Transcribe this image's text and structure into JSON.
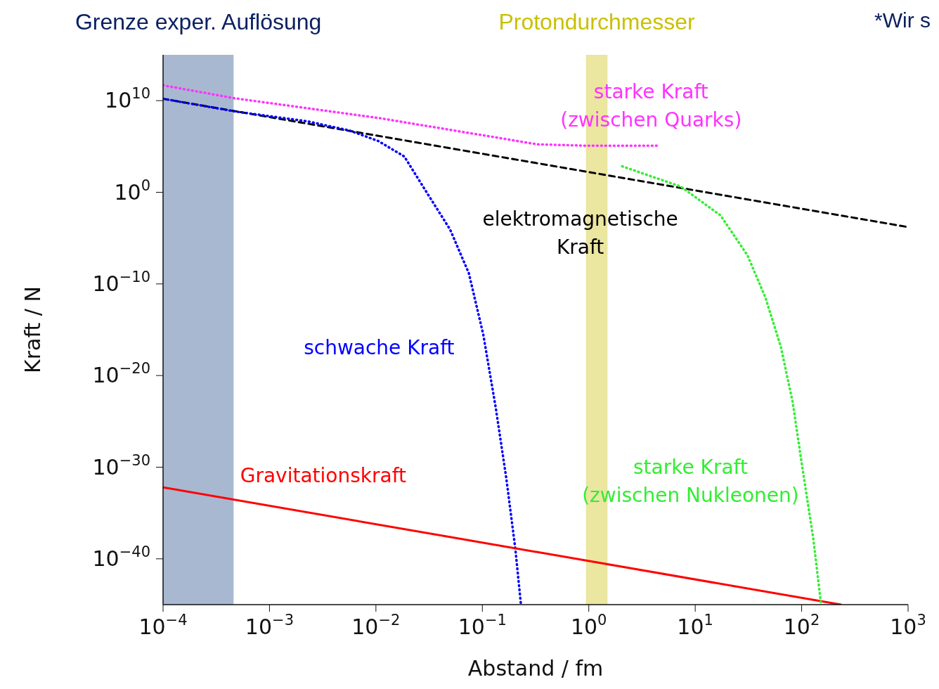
{
  "chart_data": {
    "type": "line",
    "xlabel": "Abstand / fm",
    "ylabel": "Kraft / N",
    "log": "xy",
    "xlim": [
      0.0001,
      1000
    ],
    "ylim": [
      1e-45,
      1000000000000000.0
    ],
    "xticks": [
      {
        "value": 0.0001,
        "label": "10$^{−4}$"
      },
      {
        "value": 0.001,
        "label": "10$^{−3}$"
      },
      {
        "value": 0.01,
        "label": "10$^{−2}$"
      },
      {
        "value": 0.1,
        "label": "10$^{−1}$"
      },
      {
        "value": 1,
        "label": "10$^{0}$"
      },
      {
        "value": 10,
        "label": "10$^{1}$"
      },
      {
        "value": 100,
        "label": "10$^{2}$"
      },
      {
        "value": 1000,
        "label": "10$^{3}$"
      }
    ],
    "yticks": [
      {
        "value": 1e-40,
        "label": "10$^{−40}$"
      },
      {
        "value": 1e-30,
        "label": "10$^{−30}$"
      },
      {
        "value": 1e-20,
        "label": "10$^{−20}$"
      },
      {
        "value": 1e-10,
        "label": "10$^{−10}$"
      },
      {
        "value": 1,
        "label": "10$^{0}$"
      },
      {
        "value": 10000000000.0,
        "label": "10$^{10}$"
      }
    ],
    "bands": [
      {
        "axis": "x",
        "from": 0.0001,
        "to": 0.00046,
        "label": "Grenze exper. Auflösung",
        "color": "#a8b8d0"
      },
      {
        "axis": "x",
        "from": 0.94,
        "to": 1.5,
        "label": "Protondurchmesser",
        "color": "#ebe6a0"
      }
    ],
    "series": [
      {
        "name": "starke Kraft\n(zwischen Quarks)",
        "color": "#ff33ff",
        "line_style": "dotted",
        "x": [
          0.0001,
          0.00046,
          0.0105,
          0.1,
          0.33,
          1,
          4.6
        ],
        "values": [
          470000000000.0,
          19000000000.0,
          130000000.0,
          1700000.0,
          170000.0,
          120000.0,
          120000.0
        ]
      },
      {
        "name": "elektromagnetische\nKraft",
        "color": "#000000",
        "line_style": "dashed",
        "x": [
          0.0001,
          1000
        ],
        "values": [
          16000000000.0,
          0.00016
        ]
      },
      {
        "name": "schwache Kraft",
        "color": "#0000ff",
        "line_style": "dotted",
        "x": [
          0.0001,
          0.00046,
          0.00226,
          0.0056,
          0.0105,
          0.0185,
          0.0294,
          0.0498,
          0.0746,
          0.102,
          0.134,
          0.168,
          0.204,
          0.23
        ],
        "values": [
          16000000000.0,
          700000000.0,
          56000000.0,
          5600000.0,
          400000.0,
          8000.0,
          1.4,
          8.5e-05,
          1.5e-09,
          3e-16,
          2.5e-24,
          6e-32,
          1.3e-39,
          1.3e-45
        ]
      },
      {
        "name": "Gravitationskraft",
        "color": "#ff0000",
        "line_style": "solid",
        "x": [
          0.0001,
          234
        ],
        "values": [
          6.3e-33,
          1e-45
        ]
      },
      {
        "name": "starke Kraft\n(zwischen Nukleonen)",
        "color": "#33ee33",
        "line_style": "dotted",
        "x": [
          2.06,
          7.35,
          17.3,
          31,
          45.8,
          63.8,
          82.3,
          100,
          129,
          152
        ],
        "values": [
          690,
          4.1,
          0.003,
          1.3e-07,
          3e-12,
          1.3e-17,
          1.3e-23,
          3e-30,
          1.3e-38,
          1.3e-45
        ]
      }
    ],
    "annotations": [
      "*Wir s"
    ]
  }
}
